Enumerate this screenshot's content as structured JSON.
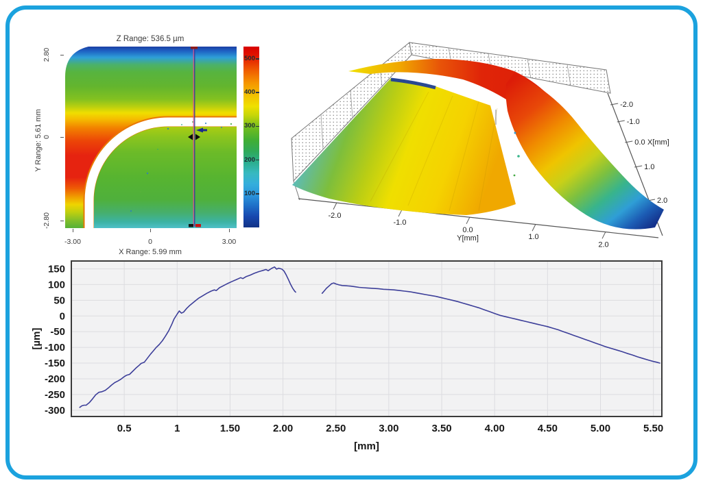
{
  "frame": {
    "border_color": "#1BA2DE",
    "background": "#FFFFFF"
  },
  "chart_data": [
    {
      "id": "height-map-2d",
      "type": "heatmap",
      "title": "Z Range:  536.5 µm",
      "xlabel": "X Range:  5.99 mm",
      "ylabel": "Y Range:  5.61 mm",
      "x_ticks": [
        "-3.00",
        "0",
        "3.00"
      ],
      "y_ticks": [
        "2.80",
        "0",
        "-2.80"
      ],
      "x_range_mm": [
        -3.0,
        3.0
      ],
      "y_range_mm": [
        -2.8,
        2.8
      ],
      "z_range_um": [
        0,
        536.5
      ],
      "colorbar_ticks": [
        500,
        400,
        300,
        200,
        100
      ],
      "cursor_x_mm": 1.5,
      "legend_position": "right",
      "description": "False-color topography: dark-blue band at top fading through cyan to green, yellow band mid-height, red lobe at lower left, white arc-shaped groove (no data) curving from bottom-left to mid-right, green lower-right plateau fading to cyan at bottom; vertical profile cursor near x = 1.5 mm"
    },
    {
      "id": "surface-3d",
      "type": "surface3d",
      "xlabel": "X[mm]",
      "ylabel": "Y[mm]",
      "x_ticks": [
        "-2.0",
        "-1.0",
        "0.0",
        "1.0",
        "2.0"
      ],
      "y_ticks": [
        "-2.0",
        "-1.0",
        "0.0",
        "1.0",
        "2.0"
      ],
      "description": "Perspective 3D rendering of the same surface: smooth sheet rising from cyan (left) through green to yellow, separated by a white groove from a red raised rim that falls off through orange-yellow-green-cyan to dark blue at the right edge; dotted mesh walls behind"
    },
    {
      "id": "profile-cross-section",
      "type": "line",
      "xlabel": "[mm]",
      "ylabel": "[µm]",
      "xlim": [
        0,
        5.58
      ],
      "ylim": [
        -320,
        175
      ],
      "grid": true,
      "line_color": "#3C3E99",
      "plot_bg": "#F2F2F3",
      "grid_color": "#DCDCE0",
      "frame_color": "#3A3A3A",
      "x_ticks": [
        {
          "value": 0.5,
          "label": "0.5"
        },
        {
          "value": 1,
          "label": "1"
        },
        {
          "value": 1.5,
          "label": "1.50"
        },
        {
          "value": 2,
          "label": "2.00"
        },
        {
          "value": 2.5,
          "label": "2.50"
        },
        {
          "value": 3,
          "label": "3.00"
        },
        {
          "value": 3.5,
          "label": "3.50"
        },
        {
          "value": 4,
          "label": "4.00"
        },
        {
          "value": 4.5,
          "label": "4.50"
        },
        {
          "value": 5,
          "label": "5.00"
        },
        {
          "value": 5.5,
          "label": "5.50"
        }
      ],
      "y_ticks": [
        150,
        100,
        50,
        0,
        -50,
        -100,
        -150,
        -200,
        -250,
        -300
      ],
      "segments": [
        [
          [
            0.08,
            -291
          ],
          [
            0.1,
            -286
          ],
          [
            0.12,
            -284
          ],
          [
            0.14,
            -284
          ],
          [
            0.17,
            -276
          ],
          [
            0.2,
            -264
          ],
          [
            0.23,
            -251
          ],
          [
            0.26,
            -243
          ],
          [
            0.29,
            -241
          ],
          [
            0.32,
            -237
          ],
          [
            0.35,
            -229
          ],
          [
            0.38,
            -220
          ],
          [
            0.41,
            -212
          ],
          [
            0.44,
            -207
          ],
          [
            0.47,
            -201
          ],
          [
            0.5,
            -193
          ],
          [
            0.52,
            -189
          ],
          [
            0.55,
            -186
          ],
          [
            0.58,
            -176
          ],
          [
            0.61,
            -166
          ],
          [
            0.64,
            -157
          ],
          [
            0.66,
            -151
          ],
          [
            0.69,
            -147
          ],
          [
            0.72,
            -134
          ],
          [
            0.75,
            -121
          ],
          [
            0.77,
            -113
          ],
          [
            0.8,
            -101
          ],
          [
            0.83,
            -91
          ],
          [
            0.86,
            -79
          ],
          [
            0.89,
            -64
          ],
          [
            0.92,
            -47
          ],
          [
            0.95,
            -26
          ],
          [
            0.97,
            -10
          ],
          [
            1.0,
            6
          ],
          [
            1.02,
            16
          ],
          [
            1.04,
            9
          ],
          [
            1.06,
            12
          ],
          [
            1.09,
            24
          ],
          [
            1.12,
            34
          ],
          [
            1.16,
            45
          ],
          [
            1.2,
            56
          ],
          [
            1.24,
            64
          ],
          [
            1.28,
            72
          ],
          [
            1.32,
            79
          ],
          [
            1.35,
            83
          ],
          [
            1.37,
            81
          ],
          [
            1.4,
            90
          ],
          [
            1.44,
            97
          ],
          [
            1.48,
            104
          ],
          [
            1.52,
            110
          ],
          [
            1.56,
            116
          ],
          [
            1.6,
            122
          ],
          [
            1.62,
            119
          ],
          [
            1.65,
            125
          ],
          [
            1.69,
            130
          ],
          [
            1.73,
            136
          ],
          [
            1.77,
            141
          ],
          [
            1.81,
            145
          ],
          [
            1.84,
            148
          ],
          [
            1.86,
            144
          ],
          [
            1.89,
            151
          ],
          [
            1.92,
            156
          ],
          [
            1.94,
            149
          ],
          [
            1.96,
            152
          ],
          [
            1.99,
            149
          ],
          [
            2.01,
            143
          ],
          [
            2.03,
            131
          ],
          [
            2.05,
            117
          ],
          [
            2.07,
            102
          ],
          [
            2.09,
            89
          ],
          [
            2.11,
            79
          ],
          [
            2.12,
            76
          ]
        ],
        [
          [
            2.37,
            72
          ],
          [
            2.39,
            80
          ],
          [
            2.41,
            88
          ],
          [
            2.44,
            97
          ],
          [
            2.46,
            103
          ],
          [
            2.48,
            105
          ],
          [
            2.5,
            102
          ],
          [
            2.53,
            99
          ],
          [
            2.56,
            97
          ],
          [
            2.6,
            96
          ],
          [
            2.64,
            95
          ],
          [
            2.68,
            93
          ],
          [
            2.72,
            91
          ],
          [
            2.76,
            90
          ],
          [
            2.8,
            89
          ],
          [
            2.85,
            88
          ],
          [
            2.9,
            87
          ],
          [
            2.95,
            85
          ],
          [
            3.0,
            84
          ],
          [
            3.05,
            83
          ],
          [
            3.1,
            81
          ],
          [
            3.15,
            79
          ],
          [
            3.2,
            77
          ],
          [
            3.25,
            74
          ],
          [
            3.3,
            71
          ],
          [
            3.35,
            68
          ],
          [
            3.4,
            65
          ],
          [
            3.45,
            62
          ],
          [
            3.5,
            58
          ],
          [
            3.55,
            54
          ],
          [
            3.6,
            50
          ],
          [
            3.65,
            46
          ],
          [
            3.7,
            41
          ],
          [
            3.75,
            36
          ],
          [
            3.8,
            31
          ],
          [
            3.85,
            26
          ],
          [
            3.9,
            20
          ],
          [
            3.95,
            14
          ],
          [
            4.0,
            8
          ],
          [
            4.05,
            2
          ],
          [
            4.1,
            -2
          ],
          [
            4.15,
            -6
          ],
          [
            4.2,
            -10
          ],
          [
            4.25,
            -14
          ],
          [
            4.3,
            -18
          ],
          [
            4.35,
            -22
          ],
          [
            4.4,
            -26
          ],
          [
            4.45,
            -30
          ],
          [
            4.5,
            -34
          ],
          [
            4.55,
            -39
          ],
          [
            4.6,
            -44
          ],
          [
            4.65,
            -50
          ],
          [
            4.7,
            -56
          ],
          [
            4.75,
            -62
          ],
          [
            4.8,
            -68
          ],
          [
            4.85,
            -74
          ],
          [
            4.9,
            -80
          ],
          [
            4.95,
            -86
          ],
          [
            5.0,
            -92
          ],
          [
            5.05,
            -98
          ],
          [
            5.1,
            -103
          ],
          [
            5.15,
            -108
          ],
          [
            5.2,
            -113
          ],
          [
            5.25,
            -119
          ],
          [
            5.3,
            -124
          ],
          [
            5.35,
            -130
          ],
          [
            5.4,
            -135
          ],
          [
            5.45,
            -140
          ],
          [
            5.5,
            -145
          ],
          [
            5.53,
            -147
          ],
          [
            5.56,
            -150
          ]
        ]
      ]
    }
  ]
}
